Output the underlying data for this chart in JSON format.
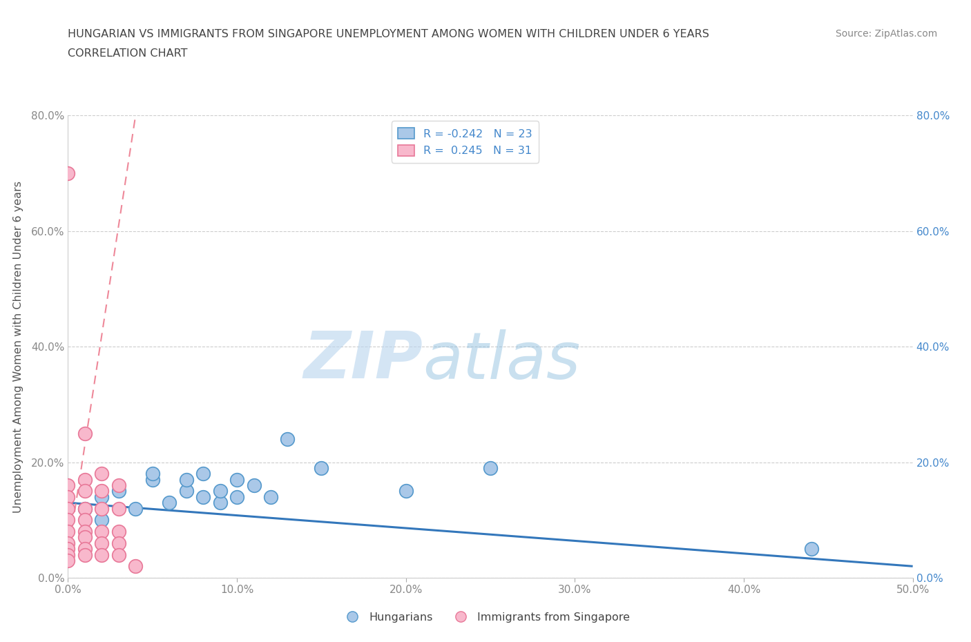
{
  "title_line1": "HUNGARIAN VS IMMIGRANTS FROM SINGAPORE UNEMPLOYMENT AMONG WOMEN WITH CHILDREN UNDER 6 YEARS",
  "title_line2": "CORRELATION CHART",
  "source": "Source: ZipAtlas.com",
  "ylabel": "Unemployment Among Women with Children Under 6 years",
  "xlim": [
    0.0,
    0.5
  ],
  "ylim": [
    0.0,
    0.8
  ],
  "xticks": [
    0.0,
    0.1,
    0.2,
    0.3,
    0.4,
    0.5
  ],
  "yticks": [
    0.0,
    0.2,
    0.4,
    0.6,
    0.8
  ],
  "xtick_labels": [
    "0.0%",
    "10.0%",
    "20.0%",
    "30.0%",
    "40.0%",
    "50.0%"
  ],
  "ytick_labels": [
    "0.0%",
    "20.0%",
    "40.0%",
    "60.0%",
    "80.0%"
  ],
  "left_ytick_color": "#888888",
  "right_ytick_color": "#4488cc",
  "xtick_color": "#888888",
  "hungarian_color": "#aac8e8",
  "hungarian_edge": "#5599cc",
  "singapore_color": "#f8b8cc",
  "singapore_edge": "#e87898",
  "trend_hungarian_color": "#3377bb",
  "trend_singapore_color": "#ee8899",
  "R_hungarian": -0.242,
  "N_hungarian": 23,
  "R_singapore": 0.245,
  "N_singapore": 31,
  "watermark_zip": "ZIP",
  "watermark_atlas": "atlas",
  "hungarian_x": [
    0.01,
    0.02,
    0.02,
    0.03,
    0.04,
    0.05,
    0.05,
    0.06,
    0.07,
    0.07,
    0.08,
    0.08,
    0.09,
    0.09,
    0.1,
    0.1,
    0.11,
    0.12,
    0.13,
    0.15,
    0.2,
    0.25,
    0.44
  ],
  "hungarian_y": [
    0.12,
    0.1,
    0.14,
    0.15,
    0.12,
    0.17,
    0.18,
    0.13,
    0.15,
    0.17,
    0.14,
    0.18,
    0.13,
    0.15,
    0.14,
    0.17,
    0.16,
    0.14,
    0.24,
    0.19,
    0.15,
    0.19,
    0.05
  ],
  "singapore_x": [
    0.0,
    0.0,
    0.0,
    0.0,
    0.0,
    0.0,
    0.0,
    0.0,
    0.0,
    0.0,
    0.01,
    0.01,
    0.01,
    0.01,
    0.01,
    0.01,
    0.01,
    0.01,
    0.01,
    0.02,
    0.02,
    0.02,
    0.02,
    0.02,
    0.02,
    0.03,
    0.03,
    0.03,
    0.03,
    0.03,
    0.04
  ],
  "singapore_y": [
    0.7,
    0.16,
    0.14,
    0.12,
    0.1,
    0.08,
    0.06,
    0.05,
    0.04,
    0.03,
    0.25,
    0.17,
    0.15,
    0.12,
    0.1,
    0.08,
    0.07,
    0.05,
    0.04,
    0.18,
    0.15,
    0.12,
    0.08,
    0.06,
    0.04,
    0.16,
    0.12,
    0.08,
    0.06,
    0.04,
    0.02
  ],
  "trend_hun_x0": 0.0,
  "trend_hun_y0": 0.13,
  "trend_hun_x1": 0.5,
  "trend_hun_y1": 0.02,
  "trend_sin_x0": 0.0,
  "trend_sin_y0": 0.04,
  "trend_sin_x1": 0.04,
  "trend_sin_y1": 0.8
}
